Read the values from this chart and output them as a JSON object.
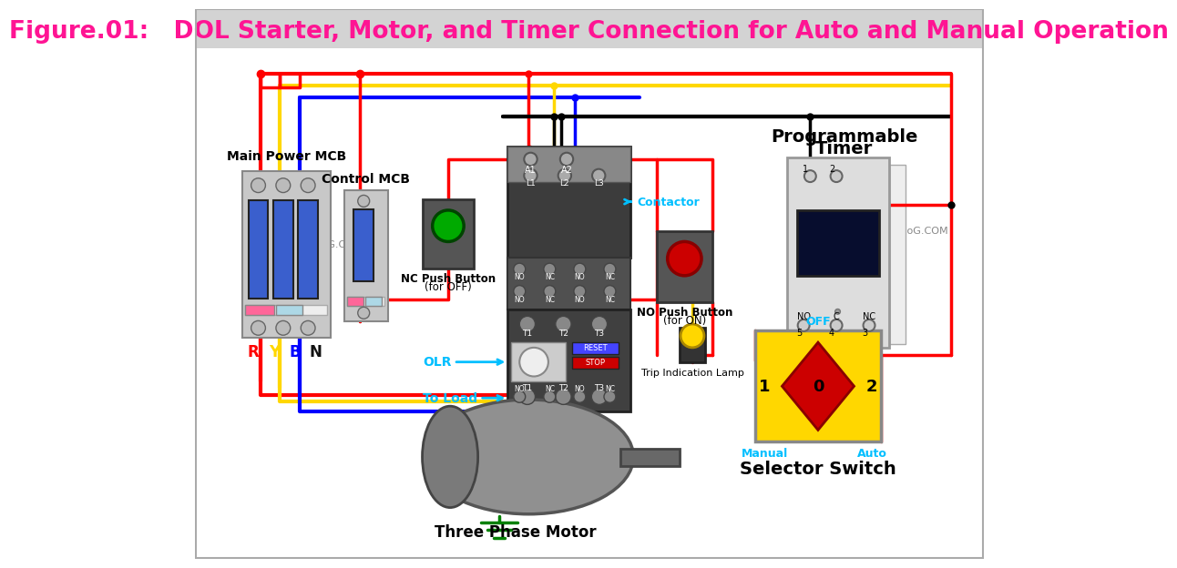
{
  "title": "Figure.01:   DOL Starter, Motor, and Timer Connection for Auto and Manual Operation",
  "title_color": "#FF1493",
  "title_bg": "#D3D3D3",
  "bg_color": "#FFFFFF",
  "wire_red": "#FF0000",
  "wire_yellow": "#FFD700",
  "wire_blue": "#0000FF",
  "wire_black": "#000000",
  "wire_green": "#008000",
  "cyan_label": "#00BFFF",
  "watermark": "WWW.ETechnoG.COM",
  "copyright": "©WWW.ETechnoG.COM"
}
